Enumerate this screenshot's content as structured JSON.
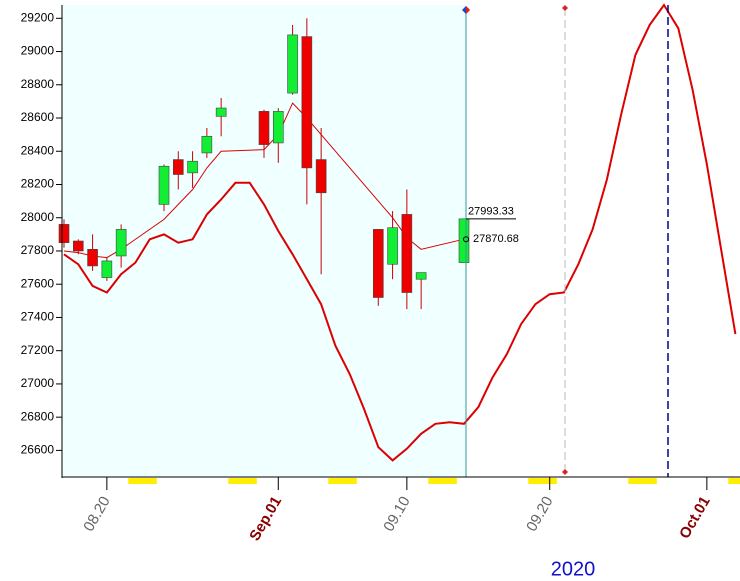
{
  "chart_data": {
    "type": "candlestick",
    "year_label": "2020",
    "ylim": [
      26440,
      29280
    ],
    "yticks": [
      26600,
      26800,
      27000,
      27200,
      27400,
      27600,
      27800,
      28000,
      28200,
      28400,
      28600,
      28800,
      29000,
      29200
    ],
    "xticks": [
      {
        "value": "2020-08-20",
        "label": "08.20"
      },
      {
        "value": "2020-09-01",
        "label": "Sep.01"
      },
      {
        "value": "2020-09-10",
        "label": "09.10"
      },
      {
        "value": "2020-09-20",
        "label": "09.20"
      },
      {
        "value": "2020-10-01",
        "label": "Oct.01"
      }
    ],
    "candles": {
      "up_color": "#11ee33",
      "down_color": "#ee0000",
      "x": [
        "2020-08-17",
        "2020-08-18",
        "2020-08-19",
        "2020-08-20",
        "2020-08-21",
        "2020-08-24",
        "2020-08-25",
        "2020-08-26",
        "2020-08-27",
        "2020-08-28",
        "2020-08-31",
        "2020-09-01",
        "2020-09-02",
        "2020-09-03",
        "2020-09-04",
        "2020-09-08",
        "2020-09-09",
        "2020-09-10",
        "2020-09-11",
        "2020-09-14"
      ],
      "open": [
        27960,
        27860,
        27810,
        27640,
        27770,
        28080,
        28350,
        28270,
        28390,
        28610,
        28640,
        28450,
        28750,
        29090,
        28350,
        27930,
        27720,
        28020,
        27630,
        27730
      ],
      "high": [
        27990,
        27870,
        27900,
        27760,
        27960,
        28320,
        28400,
        28400,
        28540,
        28720,
        28650,
        28660,
        29160,
        29200,
        28540,
        27930,
        28040,
        28170,
        27670,
        27993.33
      ],
      "low": [
        27820,
        27780,
        27680,
        27620,
        27700,
        28040,
        28170,
        28180,
        28360,
        28490,
        28360,
        28330,
        28740,
        28080,
        27660,
        27470,
        27630,
        27450,
        27450,
        27730
      ],
      "close": [
        27850,
        27800,
        27710,
        27740,
        27930,
        28310,
        28260,
        28340,
        28490,
        28660,
        28440,
        28640,
        29100,
        28300,
        28150,
        27520,
        27940,
        27550,
        27670,
        27993.33
      ]
    },
    "series": [
      {
        "color": "#dd0000",
        "width": 1,
        "x": [
          "2020-08-17",
          "2020-08-18",
          "2020-08-19",
          "2020-08-20",
          "2020-08-21",
          "2020-08-24",
          "2020-08-25",
          "2020-08-26",
          "2020-08-27",
          "2020-08-28",
          "2020-08-31",
          "2020-09-01",
          "2020-09-02",
          "2020-09-03",
          "2020-09-04",
          "2020-09-08",
          "2020-09-09",
          "2020-09-10",
          "2020-09-11",
          "2020-09-14"
        ],
        "values": [
          27800,
          27790,
          27770,
          27760,
          27810,
          27990,
          28080,
          28170,
          28300,
          28400,
          28410,
          28500,
          28690,
          28600,
          28500,
          28100,
          28000,
          27880,
          27810,
          27870.68
        ]
      },
      {
        "color": "#dd0000",
        "width": 2,
        "x": [
          "2020-08-17",
          "2020-08-18",
          "2020-08-19",
          "2020-08-20",
          "2020-08-21",
          "2020-08-22",
          "2020-08-23",
          "2020-08-24",
          "2020-08-25",
          "2020-08-26",
          "2020-08-27",
          "2020-08-28",
          "2020-08-29",
          "2020-08-30",
          "2020-08-31",
          "2020-09-01",
          "2020-09-02",
          "2020-09-03",
          "2020-09-04",
          "2020-09-05",
          "2020-09-06",
          "2020-09-07",
          "2020-09-08",
          "2020-09-09",
          "2020-09-10",
          "2020-09-11",
          "2020-09-12",
          "2020-09-13",
          "2020-09-14",
          "2020-09-15",
          "2020-09-16",
          "2020-09-17",
          "2020-09-18",
          "2020-09-19",
          "2020-09-20",
          "2020-09-21",
          "2020-09-22",
          "2020-09-23",
          "2020-09-24",
          "2020-09-25",
          "2020-09-26",
          "2020-09-27",
          "2020-09-28",
          "2020-09-29",
          "2020-09-30",
          "2020-10-01",
          "2020-10-02",
          "2020-10-03"
        ],
        "values": [
          27780,
          27720,
          27590,
          27550,
          27660,
          27730,
          27870,
          27900,
          27850,
          27870,
          28020,
          28110,
          28210,
          28210,
          28080,
          27920,
          27780,
          27630,
          27480,
          27230,
          27060,
          26850,
          26620,
          26540,
          26610,
          26700,
          26760,
          26770,
          26760,
          26860,
          27040,
          27180,
          27360,
          27480,
          27540,
          27550,
          27720,
          27930,
          28230,
          28620,
          28980,
          29160,
          29280,
          29140,
          28770,
          28320,
          27810,
          27300
        ]
      }
    ],
    "annotations": [
      {
        "label": "27993.33",
        "value": 27993.33
      },
      {
        "label": "27870.68",
        "value": 27870.68
      }
    ]
  }
}
